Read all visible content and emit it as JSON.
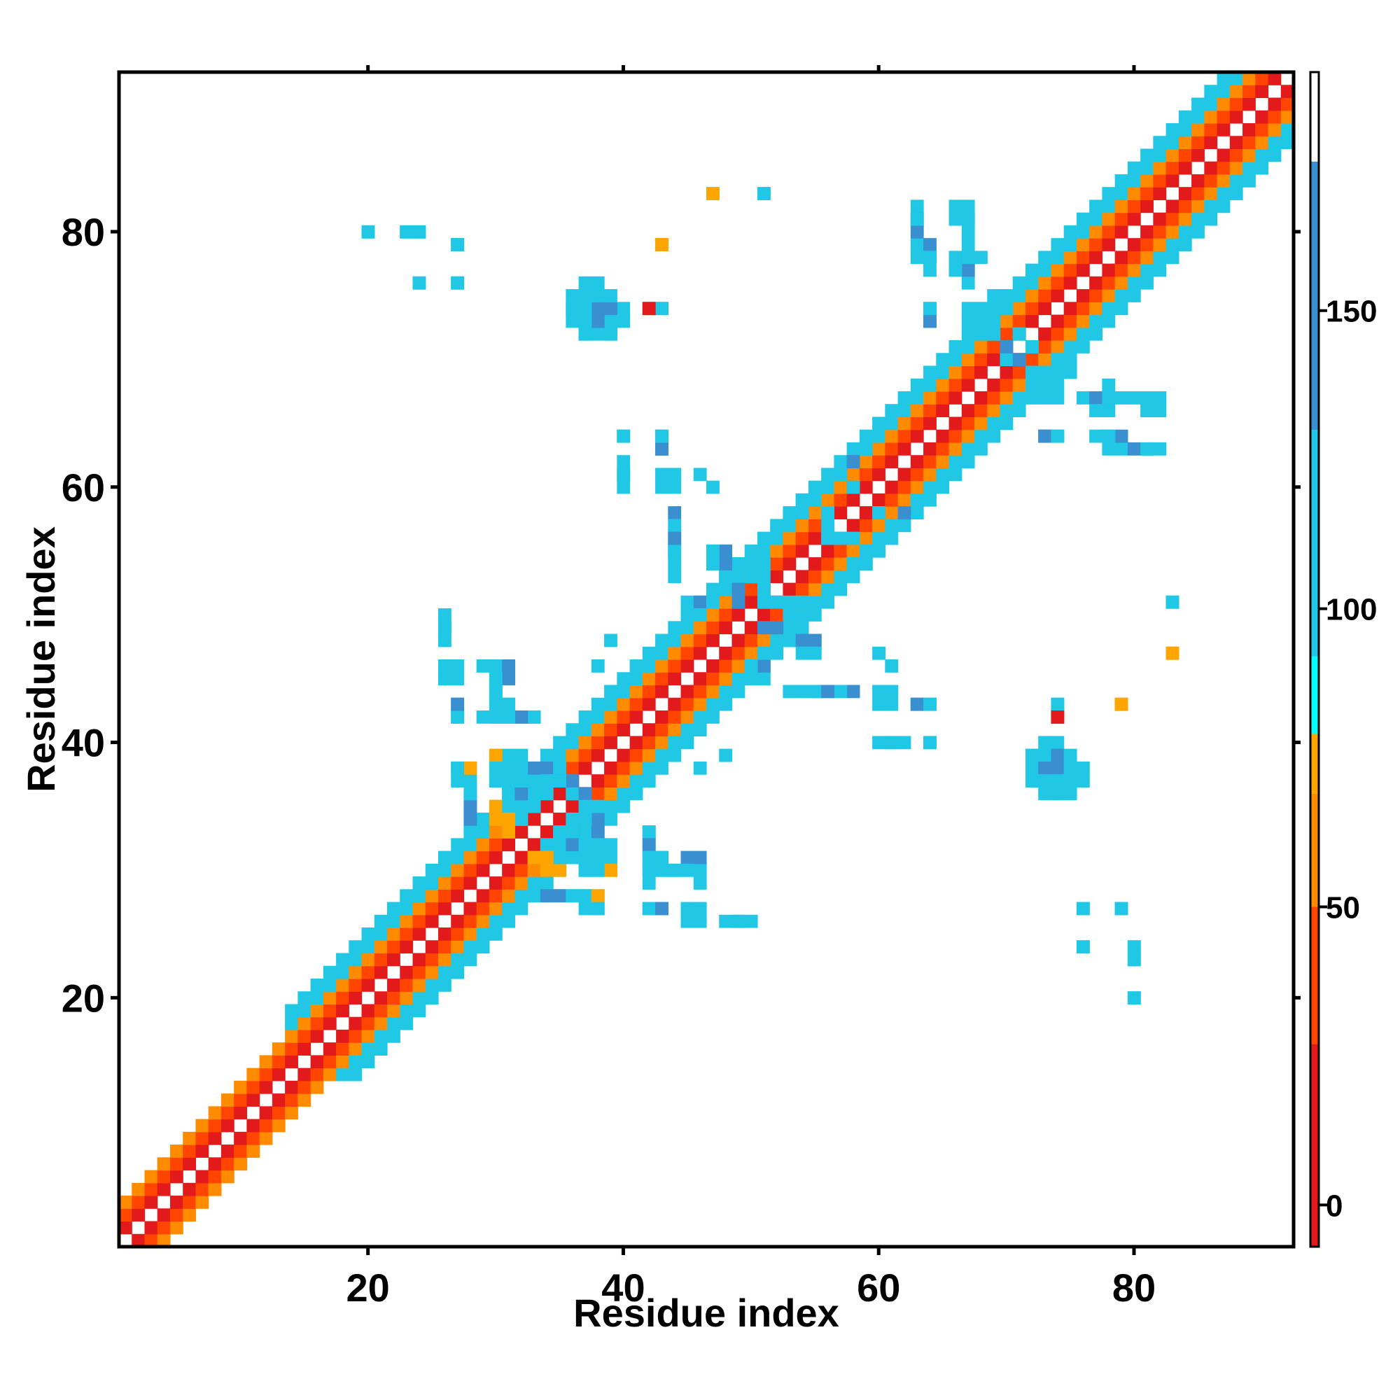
{
  "chart_data": {
    "type": "heatmap",
    "title": "",
    "xlabel": "Residue index",
    "ylabel": "Residue index",
    "xlim": [
      0.5,
      92.5
    ],
    "ylim": [
      0.5,
      92.5
    ],
    "x_ticks": [
      20,
      40,
      60,
      80
    ],
    "y_ticks": [
      20,
      40,
      60,
      80
    ],
    "colorbar": {
      "ticks": [
        0,
        50,
        100,
        150
      ],
      "range": [
        -7,
        190
      ],
      "bands": [
        {
          "from": -7,
          "to": 27,
          "color": "#e31a1c"
        },
        {
          "from": 27,
          "to": 50,
          "color": "#ff4500"
        },
        {
          "from": 50,
          "to": 69,
          "color": "#ff8c00"
        },
        {
          "from": 69,
          "to": 79,
          "color": "#ffa500"
        },
        {
          "from": 79,
          "to": 92,
          "color": "#00ffff"
        },
        {
          "from": 92,
          "to": 130,
          "color": "#20c8e6"
        },
        {
          "from": 130,
          "to": 175,
          "color": "#3a8fd0"
        },
        {
          "from": 175,
          "to": 190,
          "color": "#ffffff"
        }
      ]
    },
    "diagonal_band": [
      {
        "offset": 1,
        "value": 15
      },
      {
        "offset": 2,
        "value": 40
      },
      {
        "offset": 3,
        "value": 55
      },
      {
        "offset": 4,
        "value": 100
      },
      {
        "offset": 5,
        "value": 110
      }
    ],
    "band_extent": [
      {
        "from": 1,
        "to": 13,
        "max_offset": 3
      },
      {
        "from": 14,
        "to": 34,
        "max_offset": 5
      },
      {
        "from": 35,
        "to": 92,
        "max_offset": 5
      }
    ],
    "offdiag_cells": [
      {
        "x": 20,
        "y": 80,
        "value": 110
      },
      {
        "x": 23,
        "y": 80,
        "value": 110
      },
      {
        "x": 24,
        "y": 80,
        "value": 110
      },
      {
        "x": 27,
        "y": 79,
        "value": 140
      },
      {
        "x": 24,
        "y": 76,
        "value": 110
      },
      {
        "x": 27,
        "y": 76,
        "value": 110
      },
      {
        "x": 47,
        "y": 83,
        "value": 72
      },
      {
        "x": 51,
        "y": 83,
        "value": 110
      },
      {
        "x": 43,
        "y": 79,
        "value": 60
      },
      {
        "x": 36,
        "y": 74,
        "value": 100
      },
      {
        "x": 37,
        "y": 74,
        "value": 110
      },
      {
        "x": 38,
        "y": 74,
        "value": 140
      },
      {
        "x": 39,
        "y": 74,
        "value": 110
      },
      {
        "x": 37,
        "y": 75,
        "value": 100
      },
      {
        "x": 38,
        "y": 75,
        "value": 110
      },
      {
        "x": 37,
        "y": 73,
        "value": 110
      },
      {
        "x": 38,
        "y": 73,
        "value": 110
      },
      {
        "x": 39,
        "y": 73,
        "value": 110
      },
      {
        "x": 37,
        "y": 72,
        "value": 100
      },
      {
        "x": 39,
        "y": 72,
        "value": 110
      },
      {
        "x": 42,
        "y": 74,
        "value": 35
      },
      {
        "x": 43,
        "y": 74,
        "value": 100
      },
      {
        "x": 63,
        "y": 82,
        "value": 110
      },
      {
        "x": 63,
        "y": 81,
        "value": 140
      },
      {
        "x": 66,
        "y": 82,
        "value": 110
      },
      {
        "x": 67,
        "y": 82,
        "value": 110
      },
      {
        "x": 67,
        "y": 81,
        "value": 110
      },
      {
        "x": 63,
        "y": 79,
        "value": 110
      },
      {
        "x": 64,
        "y": 79,
        "value": 140
      },
      {
        "x": 64,
        "y": 78,
        "value": 110
      },
      {
        "x": 66,
        "y": 78,
        "value": 110
      },
      {
        "x": 67,
        "y": 78,
        "value": 140
      },
      {
        "x": 68,
        "y": 78,
        "value": 110
      },
      {
        "x": 67,
        "y": 79,
        "value": 110
      },
      {
        "x": 67,
        "y": 77,
        "value": 110
      },
      {
        "x": 64,
        "y": 74,
        "value": 110
      },
      {
        "x": 64,
        "y": 73,
        "value": 140
      },
      {
        "x": 68,
        "y": 73,
        "value": 140
      },
      {
        "x": 69,
        "y": 73,
        "value": 140
      },
      {
        "x": 68,
        "y": 72,
        "value": 110
      },
      {
        "x": 69,
        "y": 72,
        "value": 110
      },
      {
        "x": 73,
        "y": 69,
        "value": 110
      },
      {
        "x": 73,
        "y": 68,
        "value": 110
      },
      {
        "x": 74,
        "y": 68,
        "value": 100
      },
      {
        "x": 73,
        "y": 67,
        "value": 100
      },
      {
        "x": 74,
        "y": 67,
        "value": 100
      },
      {
        "x": 76,
        "y": 67,
        "value": 110
      },
      {
        "x": 77,
        "y": 67,
        "value": 140
      },
      {
        "x": 78,
        "y": 67,
        "value": 110
      },
      {
        "x": 80,
        "y": 67,
        "value": 110
      },
      {
        "x": 81,
        "y": 67,
        "value": 110
      },
      {
        "x": 77,
        "y": 66,
        "value": 110
      },
      {
        "x": 81,
        "y": 66,
        "value": 110
      },
      {
        "x": 73,
        "y": 64,
        "value": 140
      },
      {
        "x": 74,
        "y": 64,
        "value": 110
      },
      {
        "x": 77,
        "y": 64,
        "value": 110
      },
      {
        "x": 78,
        "y": 64,
        "value": 110
      },
      {
        "x": 78,
        "y": 63,
        "value": 110
      },
      {
        "x": 80,
        "y": 63,
        "value": 140
      },
      {
        "x": 81,
        "y": 63,
        "value": 110
      },
      {
        "x": 40,
        "y": 64,
        "value": 110
      },
      {
        "x": 43,
        "y": 64,
        "value": 110
      },
      {
        "x": 43,
        "y": 63,
        "value": 140
      },
      {
        "x": 40,
        "y": 62,
        "value": 110
      },
      {
        "x": 40,
        "y": 61,
        "value": 110
      },
      {
        "x": 43,
        "y": 61,
        "value": 110
      },
      {
        "x": 44,
        "y": 61,
        "value": 110
      },
      {
        "x": 46,
        "y": 61,
        "value": 110
      },
      {
        "x": 44,
        "y": 58,
        "value": 140
      },
      {
        "x": 44,
        "y": 57,
        "value": 110
      },
      {
        "x": 44,
        "y": 56,
        "value": 110
      },
      {
        "x": 44,
        "y": 55,
        "value": 110
      },
      {
        "x": 26,
        "y": 50,
        "value": 100
      },
      {
        "x": 26,
        "y": 49,
        "value": 110
      },
      {
        "x": 26,
        "y": 46,
        "value": 100
      },
      {
        "x": 27,
        "y": 46,
        "value": 110
      },
      {
        "x": 29,
        "y": 46,
        "value": 100
      },
      {
        "x": 30,
        "y": 46,
        "value": 110
      },
      {
        "x": 31,
        "y": 46,
        "value": 140
      },
      {
        "x": 30,
        "y": 45,
        "value": 110
      },
      {
        "x": 30,
        "y": 44,
        "value": 110
      },
      {
        "x": 27,
        "y": 43,
        "value": 140
      },
      {
        "x": 30,
        "y": 43,
        "value": 110
      },
      {
        "x": 31,
        "y": 43,
        "value": 110
      },
      {
        "x": 27,
        "y": 42,
        "value": 110
      },
      {
        "x": 29,
        "y": 42,
        "value": 110
      },
      {
        "x": 30,
        "y": 42,
        "value": 110
      },
      {
        "x": 31,
        "y": 42,
        "value": 110
      },
      {
        "x": 32,
        "y": 42,
        "value": 110
      },
      {
        "x": 33,
        "y": 42,
        "value": 100
      },
      {
        "x": 38,
        "y": 46,
        "value": 100
      },
      {
        "x": 51,
        "y": 45,
        "value": 110
      },
      {
        "x": 53,
        "y": 44,
        "value": 110
      },
      {
        "x": 54,
        "y": 44,
        "value": 110
      },
      {
        "x": 55,
        "y": 44,
        "value": 110
      },
      {
        "x": 56,
        "y": 44,
        "value": 140
      },
      {
        "x": 60,
        "y": 47,
        "value": 110
      },
      {
        "x": 60,
        "y": 44,
        "value": 110
      },
      {
        "x": 60,
        "y": 43,
        "value": 110
      },
      {
        "x": 63,
        "y": 43,
        "value": 140
      },
      {
        "x": 64,
        "y": 43,
        "value": 110
      },
      {
        "x": 60,
        "y": 40,
        "value": 110
      },
      {
        "x": 61,
        "y": 40,
        "value": 110
      },
      {
        "x": 64,
        "y": 40,
        "value": 110
      },
      {
        "x": 48,
        "y": 39,
        "value": 110
      },
      {
        "x": 83,
        "y": 51,
        "value": 110
      },
      {
        "x": 83,
        "y": 47,
        "value": 72
      },
      {
        "x": 74,
        "y": 43,
        "value": 100
      },
      {
        "x": 74,
        "y": 42,
        "value": 15
      },
      {
        "x": 79,
        "y": 43,
        "value": 72
      },
      {
        "x": 73,
        "y": 40,
        "value": 110
      },
      {
        "x": 74,
        "y": 40,
        "value": 110
      },
      {
        "x": 72,
        "y": 39,
        "value": 100
      },
      {
        "x": 73,
        "y": 39,
        "value": 110
      },
      {
        "x": 74,
        "y": 39,
        "value": 140
      },
      {
        "x": 75,
        "y": 39,
        "value": 110
      },
      {
        "x": 72,
        "y": 38,
        "value": 110
      },
      {
        "x": 73,
        "y": 38,
        "value": 140
      },
      {
        "x": 74,
        "y": 38,
        "value": 140
      },
      {
        "x": 75,
        "y": 38,
        "value": 110
      },
      {
        "x": 76,
        "y": 38,
        "value": 100
      },
      {
        "x": 72,
        "y": 37,
        "value": 100
      },
      {
        "x": 73,
        "y": 37,
        "value": 110
      },
      {
        "x": 74,
        "y": 37,
        "value": 110
      },
      {
        "x": 75,
        "y": 37,
        "value": 110
      },
      {
        "x": 76,
        "y": 37,
        "value": 110
      },
      {
        "x": 73,
        "y": 36,
        "value": 100
      },
      {
        "x": 74,
        "y": 36,
        "value": 100
      },
      {
        "x": 75,
        "y": 36,
        "value": 110
      },
      {
        "x": 27,
        "y": 38,
        "value": 110
      },
      {
        "x": 28,
        "y": 38,
        "value": 100
      },
      {
        "x": 28,
        "y": 37,
        "value": 110
      },
      {
        "x": 28,
        "y": 36,
        "value": 140
      },
      {
        "x": 28,
        "y": 35,
        "value": 140
      },
      {
        "x": 28,
        "y": 34,
        "value": 140
      },
      {
        "x": 28,
        "y": 33,
        "value": 110
      },
      {
        "x": 30,
        "y": 39,
        "value": 72
      },
      {
        "x": 31,
        "y": 39,
        "value": 110
      },
      {
        "x": 32,
        "y": 39,
        "value": 100
      },
      {
        "x": 30,
        "y": 38,
        "value": 100
      },
      {
        "x": 31,
        "y": 38,
        "value": 100
      },
      {
        "x": 32,
        "y": 38,
        "value": 100
      },
      {
        "x": 33,
        "y": 38,
        "value": 140
      },
      {
        "x": 34,
        "y": 38,
        "value": 140
      },
      {
        "x": 35,
        "y": 38,
        "value": 110
      },
      {
        "x": 30,
        "y": 37,
        "value": 110
      },
      {
        "x": 32,
        "y": 37,
        "value": 110
      },
      {
        "x": 34,
        "y": 37,
        "value": 110
      },
      {
        "x": 35,
        "y": 37,
        "value": 140
      },
      {
        "x": 31,
        "y": 36,
        "value": 110
      },
      {
        "x": 33,
        "y": 36,
        "value": 140
      },
      {
        "x": 30,
        "y": 35,
        "value": 72
      },
      {
        "x": 31,
        "y": 35,
        "value": 110
      },
      {
        "x": 32,
        "y": 35,
        "value": 110
      },
      {
        "x": 30,
        "y": 34,
        "value": 72
      },
      {
        "x": 31,
        "y": 34,
        "value": 72
      },
      {
        "x": 32,
        "y": 34,
        "value": 110
      },
      {
        "x": 36,
        "y": 36,
        "value": 110
      },
      {
        "x": 37,
        "y": 36,
        "value": 140
      },
      {
        "x": 37,
        "y": 35,
        "value": 110
      },
      {
        "x": 36,
        "y": 34,
        "value": 110
      },
      {
        "x": 37,
        "y": 34,
        "value": 110
      },
      {
        "x": 35,
        "y": 33,
        "value": 110
      },
      {
        "x": 36,
        "y": 33,
        "value": 100
      },
      {
        "x": 34,
        "y": 32,
        "value": 110
      },
      {
        "x": 35,
        "y": 32,
        "value": 110
      },
      {
        "x": 36,
        "y": 32,
        "value": 140
      },
      {
        "x": 37,
        "y": 32,
        "value": 110
      },
      {
        "x": 38,
        "y": 32,
        "value": 110
      },
      {
        "x": 33,
        "y": 31,
        "value": 72
      },
      {
        "x": 34,
        "y": 31,
        "value": 72
      },
      {
        "x": 37,
        "y": 31,
        "value": 110
      },
      {
        "x": 38,
        "y": 31,
        "value": 100
      },
      {
        "x": 39,
        "y": 30,
        "value": 72
      },
      {
        "x": 37,
        "y": 30,
        "value": 110
      },
      {
        "x": 38,
        "y": 30,
        "value": 110
      },
      {
        "x": 33,
        "y": 28,
        "value": 110
      },
      {
        "x": 34,
        "y": 28,
        "value": 140
      },
      {
        "x": 35,
        "y": 28,
        "value": 140
      },
      {
        "x": 36,
        "y": 28,
        "value": 110
      },
      {
        "x": 37,
        "y": 28,
        "value": 100
      },
      {
        "x": 38,
        "y": 28,
        "value": 72
      },
      {
        "x": 37,
        "y": 27,
        "value": 110
      },
      {
        "x": 38,
        "y": 27,
        "value": 110
      },
      {
        "x": 42,
        "y": 33,
        "value": 110
      },
      {
        "x": 42,
        "y": 32,
        "value": 140
      },
      {
        "x": 42,
        "y": 31,
        "value": 110
      },
      {
        "x": 43,
        "y": 31,
        "value": 110
      },
      {
        "x": 45,
        "y": 31,
        "value": 140
      },
      {
        "x": 42,
        "y": 30,
        "value": 110
      },
      {
        "x": 43,
        "y": 30,
        "value": 110
      },
      {
        "x": 44,
        "y": 30,
        "value": 110
      },
      {
        "x": 45,
        "y": 30,
        "value": 110
      },
      {
        "x": 42,
        "y": 27,
        "value": 110
      },
      {
        "x": 43,
        "y": 27,
        "value": 140
      },
      {
        "x": 45,
        "y": 27,
        "value": 110
      },
      {
        "x": 45,
        "y": 26,
        "value": 110
      },
      {
        "x": 48,
        "y": 26,
        "value": 110
      },
      {
        "x": 49,
        "y": 26,
        "value": 100
      },
      {
        "x": 76,
        "y": 27,
        "value": 110
      },
      {
        "x": 79,
        "y": 27,
        "value": 110
      },
      {
        "x": 76,
        "y": 24,
        "value": 110
      },
      {
        "x": 80,
        "y": 24,
        "value": 110
      },
      {
        "x": 80,
        "y": 23,
        "value": 110
      },
      {
        "x": 80,
        "y": 20,
        "value": 110
      },
      {
        "x": 46,
        "y": 51,
        "value": 140
      },
      {
        "x": 47,
        "y": 51,
        "value": 110
      },
      {
        "x": 46,
        "y": 50,
        "value": 110
      },
      {
        "x": 49,
        "y": 52,
        "value": 140
      },
      {
        "x": 48,
        "y": 53,
        "value": 110
      },
      {
        "x": 50,
        "y": 53,
        "value": 110
      },
      {
        "x": 49,
        "y": 54,
        "value": 110
      },
      {
        "x": 51,
        "y": 54,
        "value": 100
      },
      {
        "x": 51,
        "y": 51,
        "value": 110
      },
      {
        "x": 52,
        "y": 51,
        "value": 110
      },
      {
        "x": 53,
        "y": 51,
        "value": 110
      },
      {
        "x": 51,
        "y": 49,
        "value": 140
      },
      {
        "x": 52,
        "y": 49,
        "value": 140
      },
      {
        "x": 53,
        "y": 48,
        "value": 110
      },
      {
        "x": 54,
        "y": 48,
        "value": 140
      },
      {
        "x": 55,
        "y": 48,
        "value": 140
      },
      {
        "x": 54,
        "y": 47,
        "value": 100
      },
      {
        "x": 55,
        "y": 47,
        "value": 100
      },
      {
        "x": 56,
        "y": 56,
        "value": 110
      },
      {
        "x": 57,
        "y": 56,
        "value": 110
      },
      {
        "x": 58,
        "y": 56,
        "value": 100
      },
      {
        "x": 59,
        "y": 55,
        "value": 110
      },
      {
        "x": 58,
        "y": 54,
        "value": 110
      },
      {
        "x": 59,
        "y": 54,
        "value": 110
      },
      {
        "x": 61,
        "y": 57,
        "value": 110
      },
      {
        "x": 60,
        "y": 58,
        "value": 100
      },
      {
        "x": 62,
        "y": 58,
        "value": 140
      },
      {
        "x": 63,
        "y": 59,
        "value": 110
      },
      {
        "x": 71,
        "y": 72,
        "value": 110
      },
      {
        "x": 72,
        "y": 71,
        "value": 110
      },
      {
        "x": 70,
        "y": 70,
        "value": 110
      },
      {
        "x": 71,
        "y": 70,
        "value": 140
      },
      {
        "x": 72,
        "y": 69,
        "value": 110
      },
      {
        "x": 70,
        "y": 74,
        "value": 110
      },
      {
        "x": 69,
        "y": 75,
        "value": 110
      }
    ]
  }
}
